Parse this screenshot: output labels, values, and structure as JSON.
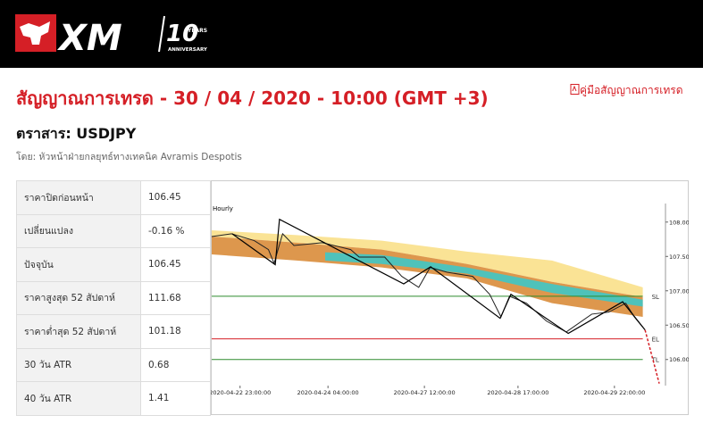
{
  "header": {
    "logo": {
      "brand": "XM",
      "years": "10",
      "years_word": "YEARS",
      "anniversary": "ANNIVERSARY"
    }
  },
  "title": "สัญญาณการเทรด - 30 / 04 / 2020 - 10:00 (GMT +3)",
  "guide_link": "คู่มือสัญญาณการเทรด",
  "instrument": "ตราสาร: USDJPY",
  "author": "โดย: หัวหน้าฝ่ายกลยุทธ์ทางเทคนิค Avramis Despotis",
  "table": {
    "rows": [
      [
        "ราคาปิดก่อนหน้า",
        "106.45"
      ],
      [
        "เปลี่ยนแปลง",
        "-0.16 %"
      ],
      [
        "ปัจจุบัน",
        "106.45"
      ],
      [
        "ราคาสูงสุด 52 สัปดาห์",
        "111.68"
      ],
      [
        "ราคาต่ำสุด 52 สัปดาห์",
        "101.18"
      ],
      [
        "30 วัน ATR",
        "0.68"
      ],
      [
        "40 วัน ATR",
        "1.41"
      ]
    ]
  },
  "chart": {
    "type": "line",
    "timeframe": "Hourly",
    "xlim": [
      0,
      160
    ],
    "ylim": [
      105.62,
      108.27
    ],
    "xticks": [
      {
        "value": 10,
        "label": "2020-04-22 23:00:00"
      },
      {
        "value": 41,
        "label": "2020-04-24 04:00:00"
      },
      {
        "value": 75,
        "label": "2020-04-27 12:00:00"
      },
      {
        "value": 108,
        "label": "2020-04-28 17:00:00"
      },
      {
        "value": 142,
        "label": "2020-04-29 22:00:00"
      }
    ],
    "yticks": [
      {
        "value": 108,
        "label": "108.00"
      },
      {
        "value": 107.5,
        "label": "107.50"
      },
      {
        "value": 107,
        "label": "107.00"
      },
      {
        "value": 106.5,
        "label": "106.50"
      },
      {
        "value": 106,
        "label": "106.00"
      }
    ],
    "bands": [
      {
        "color": "#f9e08a",
        "x": [
          0,
          30,
          60,
          90,
          120,
          152
        ],
        "upper": [
          107.88,
          107.81,
          107.73,
          107.57,
          107.44,
          107.05
        ],
        "lower": [
          107.79,
          107.7,
          107.6,
          107.39,
          107.13,
          106.91
        ]
      },
      {
        "color": "#d98c3a",
        "x": [
          0,
          30,
          60,
          90,
          120,
          152
        ],
        "upper": [
          107.79,
          107.7,
          107.6,
          107.39,
          107.13,
          106.91
        ],
        "lower": [
          107.53,
          107.44,
          107.34,
          107.18,
          106.82,
          106.62
        ]
      },
      {
        "color": "#3fc6c6",
        "x": [
          40,
          60,
          90,
          120,
          152
        ],
        "upper": [
          107.56,
          107.52,
          107.34,
          107.1,
          106.87
        ],
        "lower": [
          107.44,
          107.39,
          107.25,
          106.97,
          106.77
        ]
      }
    ],
    "price": {
      "color": "#222222",
      "x": [
        0,
        7,
        15,
        20,
        22,
        25,
        29,
        39,
        49,
        52,
        61,
        67,
        73,
        77,
        83,
        92,
        98,
        102,
        105,
        111,
        118,
        125,
        134,
        140,
        146,
        149,
        152
      ],
      "values": [
        107.79,
        107.83,
        107.73,
        107.6,
        107.4,
        107.83,
        107.66,
        107.7,
        107.6,
        107.49,
        107.49,
        107.21,
        107.05,
        107.34,
        107.27,
        107.21,
        106.95,
        106.62,
        106.92,
        106.82,
        106.56,
        106.4,
        106.66,
        106.69,
        106.82,
        106.62,
        106.47
      ]
    },
    "zigzag": {
      "color": "#000000",
      "x": [
        7.2,
        22.4,
        23.9,
        67.7,
        77.2,
        101.7,
        105.5,
        125.7,
        144.9,
        152.8
      ],
      "values": [
        107.83,
        107.38,
        108.04,
        107.1,
        107.35,
        106.6,
        106.95,
        106.38,
        106.84,
        106.43
      ]
    },
    "projection": {
      "color": "#d51f26",
      "x": [
        152.8,
        157.8
      ],
      "values": [
        106.43,
        105.65
      ]
    },
    "levels": [
      {
        "label": "SL",
        "value": 106.92,
        "color": "#2e8b2e"
      },
      {
        "label": "EL",
        "value": 106.3,
        "color": "#d51f26"
      },
      {
        "label": "TL",
        "value": 106.0,
        "color": "#2e8b2e"
      }
    ]
  }
}
